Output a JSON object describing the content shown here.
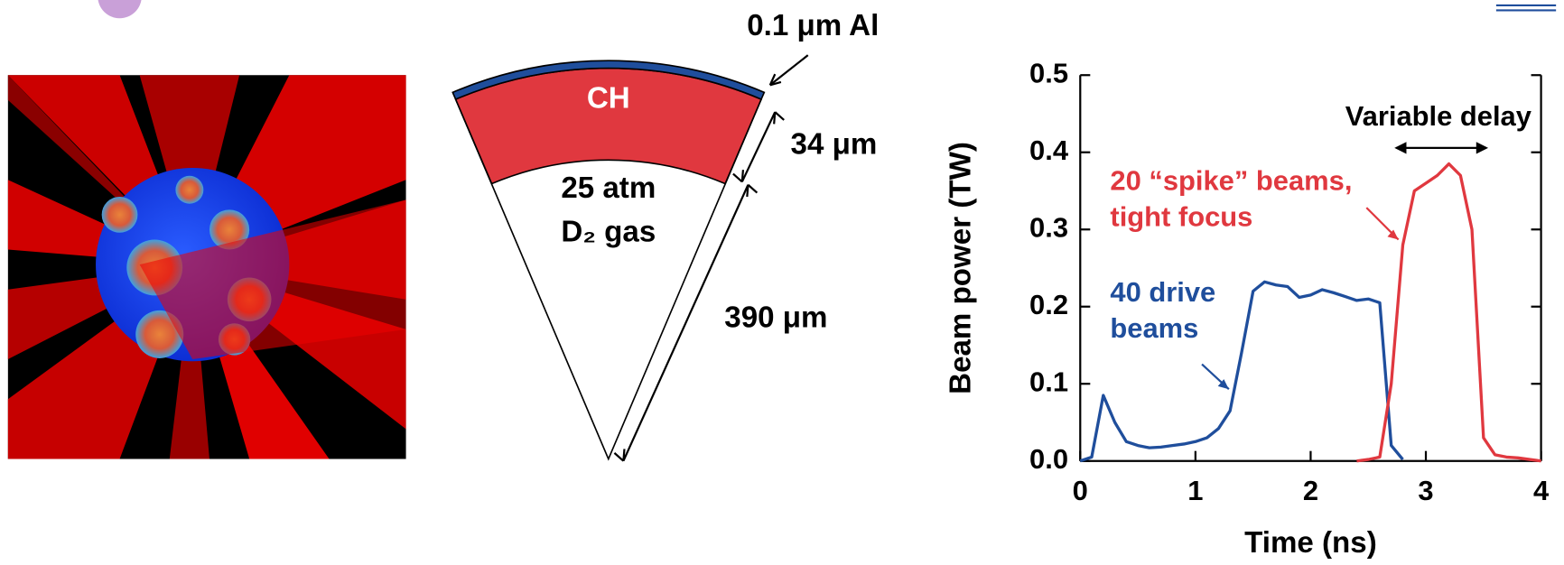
{
  "diagram": {
    "layer_al": "0.1 μm Al",
    "layer_ch": "CH",
    "ch_thickness": "34 μm",
    "gas_line1": "25 atm",
    "gas_line2": "D₂ gas",
    "radius": "390 μm"
  },
  "chart_data": {
    "type": "line",
    "x_label": "Time (ns)",
    "y_label": "Beam power (TW)",
    "x": [
      0,
      0.1,
      0.2,
      0.3,
      0.4,
      0.5,
      0.6,
      0.7,
      0.8,
      0.9,
      1.0,
      1.1,
      1.2,
      1.3,
      1.4,
      1.5,
      1.6,
      1.7,
      1.8,
      1.9,
      2.0,
      2.1,
      2.2,
      2.3,
      2.4,
      2.5,
      2.6,
      2.7,
      2.8,
      2.9,
      3.0,
      3.1,
      3.2,
      3.3,
      3.4,
      3.5,
      3.6,
      3.7,
      3.8,
      3.9,
      4.0
    ],
    "series": [
      {
        "name": "40 drive beams",
        "color": "#1f4e9c",
        "values": [
          0,
          0.005,
          0.085,
          0.05,
          0.025,
          0.02,
          0.017,
          0.018,
          0.02,
          0.022,
          0.025,
          0.03,
          0.042,
          0.065,
          0.14,
          0.22,
          0.232,
          0.228,
          0.226,
          0.212,
          0.215,
          0.222,
          0.218,
          0.213,
          0.208,
          0.21,
          0.205,
          0.02,
          0.002,
          null,
          null,
          null,
          null,
          null,
          null,
          null,
          null,
          null,
          null,
          null,
          null
        ]
      },
      {
        "name": "20 “spike” beams, tight focus",
        "color": "#e0383f",
        "values": [
          null,
          null,
          null,
          null,
          null,
          null,
          null,
          null,
          null,
          null,
          null,
          null,
          null,
          null,
          null,
          null,
          null,
          null,
          null,
          null,
          null,
          null,
          null,
          null,
          0,
          0.002,
          0.005,
          0.1,
          0.28,
          0.35,
          0.36,
          0.37,
          0.385,
          0.37,
          0.3,
          0.03,
          0.008,
          0.005,
          0.004,
          0.002,
          0
        ]
      }
    ],
    "annotation": "Variable delay",
    "xlim": [
      0,
      4
    ],
    "xticks": [
      0,
      1,
      2,
      3,
      4
    ],
    "ylim": [
      0,
      0.5
    ],
    "yticks": [
      {
        "value": 0,
        "label": "0.0"
      },
      0.1,
      0.2,
      0.3,
      0.4,
      0.5
    ]
  }
}
